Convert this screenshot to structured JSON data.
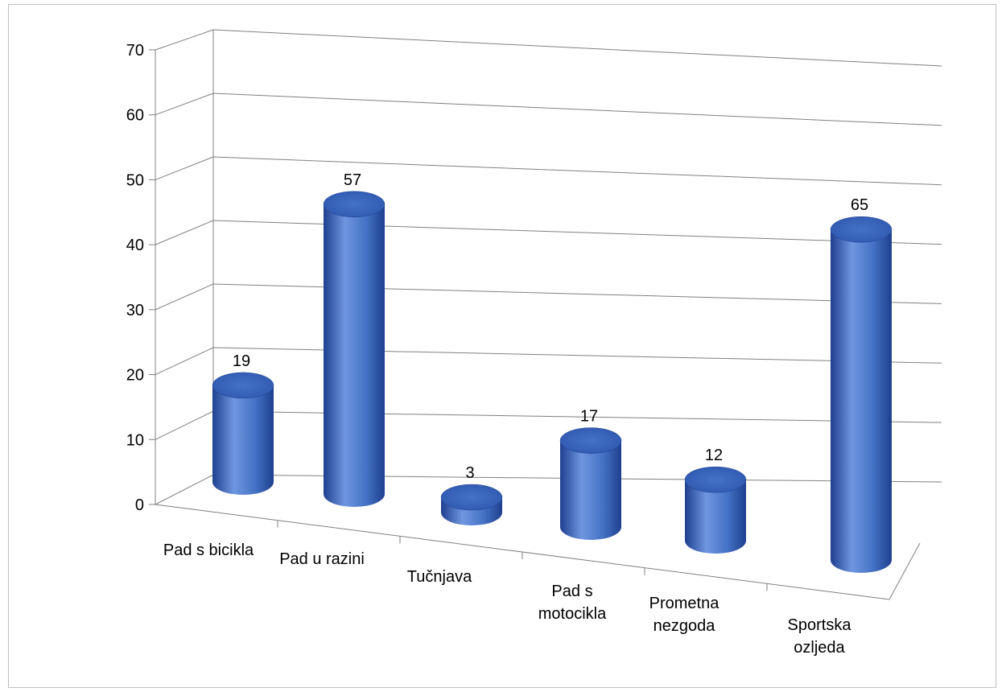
{
  "chart_data": {
    "type": "bar",
    "style": "3d-cylinder",
    "title": "",
    "xlabel": "",
    "ylabel": "",
    "categories": [
      [
        "Pad s bicikla"
      ],
      [
        "Pad u razini"
      ],
      [
        "Tučnjava"
      ],
      [
        "Pad s",
        "motocikla"
      ],
      [
        "Prometna",
        "nezgoda"
      ],
      [
        "Sportska",
        "ozljeda"
      ]
    ],
    "series": [
      {
        "values": [
          19,
          57,
          3,
          17,
          12,
          65
        ]
      }
    ],
    "data_labels": [
      "19",
      "57",
      "3",
      "17",
      "12",
      "65"
    ],
    "ylim": [
      0,
      70
    ],
    "yticks": [
      "0",
      "10",
      "20",
      "30",
      "40",
      "50",
      "60",
      "70"
    ],
    "grid": true,
    "legend": "none",
    "colors": {
      "bar": "#4472c4",
      "bar_dark": "#1f3f8f",
      "bar_light": "#6f96e0",
      "top": "#2f58b0",
      "grid": "#808080"
    }
  }
}
